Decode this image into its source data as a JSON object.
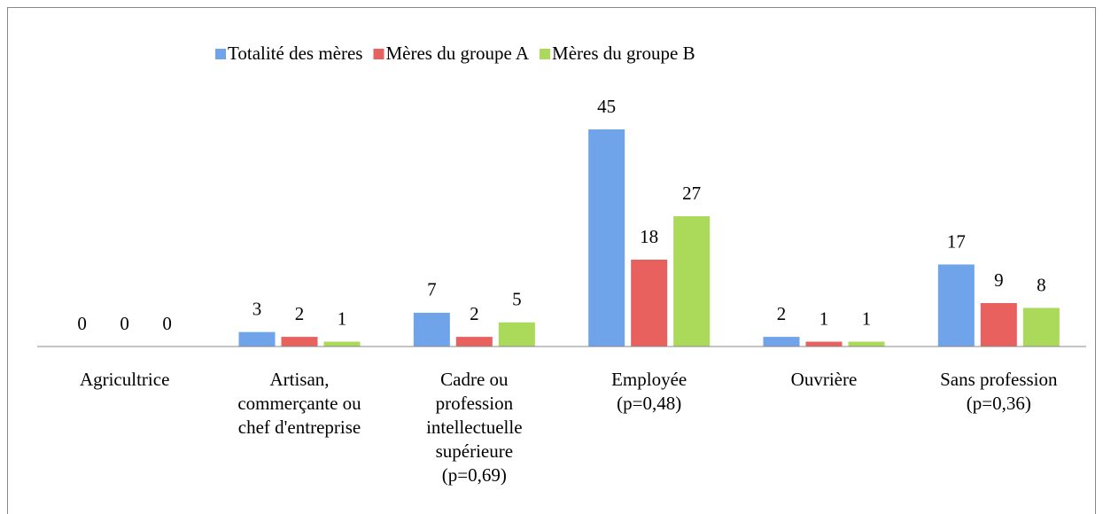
{
  "chart_data": {
    "type": "bar",
    "categories": [
      "Agricultrice",
      "Artisan,\ncommerçante ou\nchef d'entreprise",
      "Cadre ou\nprofession\nintellectuelle\nsupérieure\n(p=0,69)",
      "Employée\n(p=0,48)",
      "Ouvrière",
      "Sans profession\n(p=0,36)"
    ],
    "series": [
      {
        "name": "Totalité des mères",
        "color": "#6fa3ea",
        "values": [
          0,
          3,
          7,
          45,
          2,
          17
        ]
      },
      {
        "name": "Mères du groupe A",
        "color": "#e8615f",
        "values": [
          0,
          2,
          2,
          18,
          1,
          9
        ]
      },
      {
        "name": "Mères du groupe B",
        "color": "#abd95a",
        "values": [
          0,
          1,
          5,
          27,
          1,
          8
        ]
      }
    ],
    "legend": "top"
  }
}
